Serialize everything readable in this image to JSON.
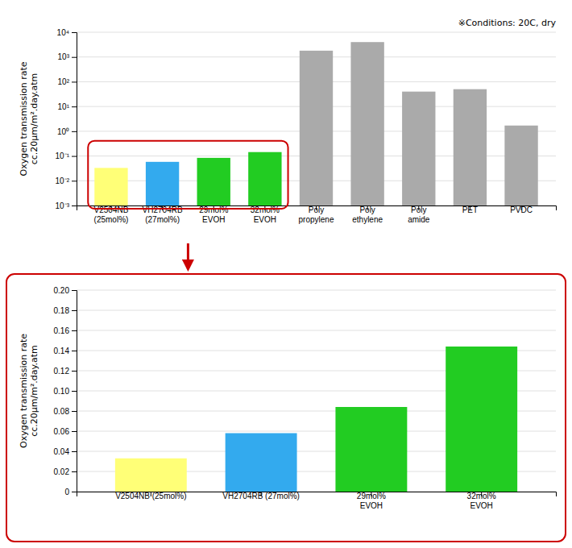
{
  "chart_data": [
    {
      "type": "bar",
      "categories": [
        "V2504NB\n(25mol%)",
        "VH2704RB\n(27mol%)",
        "29mol%\nEVOH",
        "32mol%\nEVOH",
        "Poly\npropylene",
        "Poly\nethylene",
        "Poly\namide",
        "PET",
        "PVDC"
      ],
      "values": [
        0.033,
        0.058,
        0.084,
        0.144,
        1800,
        4000,
        40,
        50,
        1.7
      ],
      "colors": [
        "#FFFF77",
        "#33AAEE",
        "#22CC22",
        "#22CC22",
        "#AAAAAA",
        "#AAAAAA",
        "#AAAAAA",
        "#AAAAAA",
        "#AAAAAA"
      ],
      "ylabel": "Oxygen transmission rate\ncc.20μm/m².day.atm",
      "annotation": "※Conditions: 20C, dry",
      "log": "y",
      "ylim": [
        0.001,
        10000
      ],
      "yticks": [
        {
          "value": 0.001,
          "label": "10⁻³"
        },
        {
          "value": 0.01,
          "label": "10⁻²"
        },
        {
          "value": 0.1,
          "label": "10⁻¹"
        },
        {
          "value": 1,
          "label": "10⁰"
        },
        {
          "value": 10,
          "label": "10¹"
        },
        {
          "value": 100,
          "label": "10²"
        },
        {
          "value": 1000,
          "label": "10³"
        },
        {
          "value": 10000,
          "label": "10⁴"
        }
      ],
      "grid": true
    },
    {
      "type": "bar",
      "categories": [
        "V2504NB (25mol%)",
        "VH2704RB (27mol%)",
        "29mol%\nEVOH",
        "32mol%\nEVOH"
      ],
      "values": [
        0.033,
        0.058,
        0.084,
        0.144
      ],
      "colors": [
        "#FFFF77",
        "#33AAEE",
        "#22CC22",
        "#22CC22"
      ],
      "ylabel": "Oxygen transmission rate\ncc.20μm/m².day.atm",
      "ylim": [
        0,
        0.2
      ],
      "yticks": [
        0,
        0.02,
        0.04,
        0.06,
        0.08,
        {
          "value": 0.1,
          "label": "0.10"
        },
        0.12,
        0.14,
        0.16,
        0.18,
        {
          "value": 0.2,
          "label": "0.20"
        }
      ],
      "grid": true
    }
  ]
}
